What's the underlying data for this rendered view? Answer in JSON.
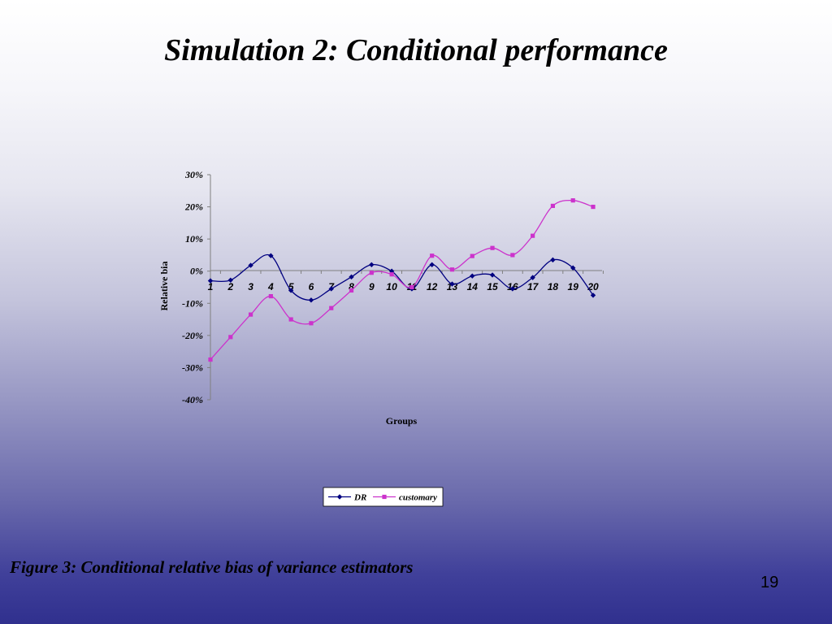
{
  "slide": {
    "title": "Simulation 2: Conditional performance",
    "caption": "Figure 3: Conditional relative bias of variance estimators",
    "page_number": "19"
  },
  "chart_data": {
    "type": "line",
    "title": "",
    "xlabel": "Groups",
    "ylabel": "Relative bia",
    "categories": [
      "1",
      "2",
      "3",
      "4",
      "5",
      "6",
      "7",
      "8",
      "9",
      "10",
      "11",
      "12",
      "13",
      "14",
      "15",
      "16",
      "17",
      "18",
      "19",
      "20"
    ],
    "y_ticks": [
      "30%",
      "20%",
      "10%",
      "0%",
      "-10%",
      "-20%",
      "-30%",
      "-40%"
    ],
    "ylim": [
      -40,
      30
    ],
    "y_unit": "%",
    "grid": false,
    "legend_position": "bottom",
    "series": [
      {
        "name": "DR",
        "color": "#000080",
        "marker": "diamond",
        "values": [
          -3,
          -2.8,
          1.8,
          4.8,
          -6,
          -9,
          -5.5,
          -1.8,
          2,
          0,
          -5.5,
          2,
          -4,
          -1.5,
          -1.2,
          -5.5,
          -2,
          3.5,
          1,
          -7.5
        ]
      },
      {
        "name": "customary",
        "color": "#cc33cc",
        "marker": "square",
        "values": [
          -27.5,
          -20.5,
          -13.5,
          -7.8,
          -15,
          -16.2,
          -11.5,
          -6,
          -0.5,
          -1,
          -5,
          4.8,
          0.5,
          4.7,
          7.2,
          5,
          11,
          20.3,
          22,
          20
        ]
      }
    ]
  }
}
